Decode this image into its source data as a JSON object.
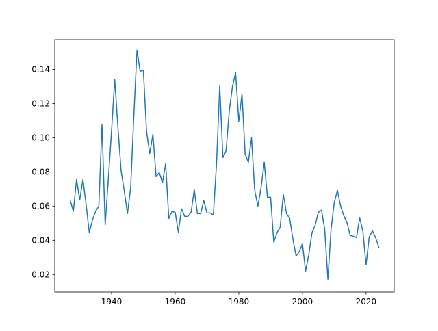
{
  "chart_data": {
    "type": "line",
    "x": [
      1927,
      1928,
      1929,
      1930,
      1931,
      1932,
      1933,
      1934,
      1935,
      1936,
      1937,
      1938,
      1939,
      1940,
      1941,
      1942,
      1943,
      1944,
      1945,
      1946,
      1947,
      1948,
      1949,
      1950,
      1951,
      1952,
      1953,
      1954,
      1955,
      1956,
      1957,
      1958,
      1959,
      1960,
      1961,
      1962,
      1963,
      1964,
      1965,
      1966,
      1967,
      1968,
      1969,
      1970,
      1971,
      1972,
      1973,
      1974,
      1975,
      1976,
      1977,
      1978,
      1979,
      1980,
      1981,
      1982,
      1983,
      1984,
      1985,
      1986,
      1987,
      1988,
      1989,
      1990,
      1991,
      1992,
      1993,
      1994,
      1995,
      1996,
      1997,
      1998,
      1999,
      2000,
      2001,
      2002,
      2003,
      2004,
      2005,
      2006,
      2007,
      2008,
      2009,
      2010,
      2011,
      2012,
      2013,
      2014,
      2015,
      2016,
      2017,
      2018,
      2019,
      2020,
      2021,
      2022,
      2023,
      2024
    ],
    "series": [
      {
        "color": "#1f77b4",
        "values": [
          0.0632,
          0.057,
          0.0756,
          0.0636,
          0.0756,
          0.061,
          0.0444,
          0.052,
          0.057,
          0.06,
          0.1076,
          0.049,
          0.076,
          0.104,
          0.134,
          0.1064,
          0.0808,
          0.0688,
          0.0556,
          0.0704,
          0.1128,
          0.1512,
          0.1388,
          0.1396,
          0.1036,
          0.0908,
          0.102,
          0.0772,
          0.0796,
          0.0736,
          0.0848,
          0.0528,
          0.0568,
          0.0564,
          0.0448,
          0.0584,
          0.054,
          0.054,
          0.0564,
          0.0696,
          0.0556,
          0.0556,
          0.0632,
          0.056,
          0.056,
          0.0548,
          0.0848,
          0.1304,
          0.0884,
          0.0924,
          0.1156,
          0.13,
          0.138,
          0.1096,
          0.1256,
          0.0904,
          0.0856,
          0.1,
          0.0692,
          0.06,
          0.0708,
          0.0856,
          0.0652,
          0.0652,
          0.0388,
          0.0444,
          0.0476,
          0.0668,
          0.0556,
          0.0528,
          0.0408,
          0.0308,
          0.0332,
          0.038,
          0.022,
          0.0316,
          0.0444,
          0.0488,
          0.0564,
          0.0576,
          0.0464,
          0.0172,
          0.0464,
          0.062,
          0.0692,
          0.06,
          0.0544,
          0.0504,
          0.0428,
          0.0424,
          0.0416,
          0.0532,
          0.0452,
          0.0256,
          0.042,
          0.0456,
          0.0416,
          0.036
        ]
      }
    ],
    "xlim": [
      1922.15,
      2028.85
    ],
    "xticks": [
      1940,
      1960,
      1980,
      2000,
      2020
    ],
    "ylim": [
      0.0097,
      0.1574
    ],
    "yticks": [
      0.02,
      0.04,
      0.06,
      0.08,
      {
        "value": 0.1,
        "label": "0.10"
      },
      0.12,
      0.14
    ]
  }
}
